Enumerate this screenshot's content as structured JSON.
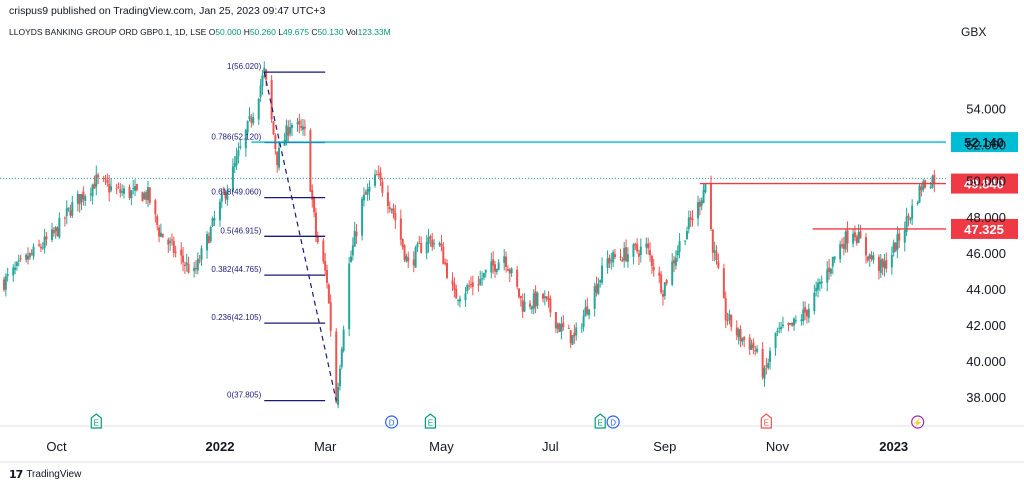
{
  "publisher": "crispus9 published on TradingView.com, Jan 25, 2023 09:47 UTC+3",
  "symbol": {
    "name": "LLOYDS BANKING GROUP ORD GBP0.1, 1D, LSE",
    "open_label": "O",
    "open": "50.000",
    "high_label": "H",
    "high": "50.260",
    "low_label": "L",
    "low": "49.675",
    "close_label": "C",
    "close": "50.130",
    "vol_label": "Vol",
    "vol": "123.33M"
  },
  "currency": "GBX",
  "footer": {
    "brand": "TradingView"
  },
  "colors": {
    "up": "#26a69a",
    "down": "#ef5350",
    "fib": "#1a1a7a",
    "resistance": "#ef3a45",
    "cyan": "#00bcd4",
    "price_dotted": "#26a69a"
  },
  "chart_data": {
    "type": "candlestick",
    "ylim": [
      36.4,
      57.8
    ],
    "y_ticks": [
      "54.000",
      "52.000",
      "50.000",
      "48.000",
      "46.000",
      "44.000",
      "42.000",
      "40.000",
      "38.000"
    ],
    "y_tick_values": [
      54,
      52,
      50,
      48,
      46,
      44,
      42,
      40,
      38
    ],
    "x_ticks": [
      "Oct",
      "2022",
      "Mar",
      "May",
      "Jul",
      "Sep",
      "Nov",
      "2023"
    ],
    "x_tick_dates": [
      "2021-10-01",
      "2022-01-03",
      "2022-03-01",
      "2022-05-03",
      "2022-07-01",
      "2022-09-01",
      "2022-11-01",
      "2023-01-03"
    ],
    "bold_x_ticks": [
      "2022",
      "2023"
    ],
    "date_range": [
      "2021-09-08",
      "2023-01-27"
    ],
    "price_path": [
      [
        "2021-09-08",
        44.4
      ],
      [
        "2021-09-20",
        45.6
      ],
      [
        "2021-10-05",
        47.0
      ],
      [
        "2021-10-15",
        48.6
      ],
      [
        "2021-10-28",
        50.0
      ],
      [
        "2021-11-08",
        49.4
      ],
      [
        "2021-11-25",
        49.2
      ],
      [
        "2021-12-01",
        47.2
      ],
      [
        "2021-12-10",
        46.0
      ],
      [
        "2021-12-20",
        44.8
      ],
      [
        "2021-12-31",
        47.8
      ],
      [
        "2022-01-10",
        50.5
      ],
      [
        "2022-01-20",
        53.5
      ],
      [
        "2022-01-27",
        56.02
      ],
      [
        "2022-02-03",
        51.2
      ],
      [
        "2022-02-10",
        53.2
      ],
      [
        "2022-02-18",
        52.6
      ],
      [
        "2022-02-24",
        47.0
      ],
      [
        "2022-03-02",
        44.5
      ],
      [
        "2022-03-07",
        37.805
      ],
      [
        "2022-03-14",
        45.3
      ],
      [
        "2022-03-21",
        48.8
      ],
      [
        "2022-03-29",
        50.2
      ],
      [
        "2022-04-06",
        48.6
      ],
      [
        "2022-04-15",
        45.3
      ],
      [
        "2022-04-25",
        46.8
      ],
      [
        "2022-05-02",
        46.4
      ],
      [
        "2022-05-10",
        43.6
      ],
      [
        "2022-05-24",
        44.5
      ],
      [
        "2022-06-06",
        45.9
      ],
      [
        "2022-06-16",
        43.1
      ],
      [
        "2022-06-27",
        43.5
      ],
      [
        "2022-07-06",
        41.9
      ],
      [
        "2022-07-14",
        41.2
      ],
      [
        "2022-07-22",
        43.3
      ],
      [
        "2022-08-01",
        45.6
      ],
      [
        "2022-08-10",
        45.9
      ],
      [
        "2022-08-22",
        46.3
      ],
      [
        "2022-08-31",
        44.0
      ],
      [
        "2022-09-09",
        46.5
      ],
      [
        "2022-09-19",
        48.6
      ],
      [
        "2022-09-23",
        49.84
      ],
      [
        "2022-09-27",
        46.4
      ],
      [
        "2022-10-04",
        42.5
      ],
      [
        "2022-10-11",
        41.4
      ],
      [
        "2022-10-19",
        40.8
      ],
      [
        "2022-10-25",
        39.2
      ],
      [
        "2022-10-31",
        41.5
      ],
      [
        "2022-11-08",
        41.8
      ],
      [
        "2022-11-17",
        42.8
      ],
      [
        "2022-11-28",
        45.0
      ],
      [
        "2022-12-05",
        46.4
      ],
      [
        "2022-12-12",
        47.325
      ],
      [
        "2022-12-19",
        46.0
      ],
      [
        "2022-12-28",
        45.1
      ],
      [
        "2023-01-05",
        46.6
      ],
      [
        "2023-01-12",
        48.2
      ],
      [
        "2023-01-18",
        49.7
      ],
      [
        "2023-01-24",
        50.13
      ]
    ],
    "fib_levels": [
      {
        "label": "1(56.020)",
        "value": 56.02
      },
      {
        "label": "0.786(52.120)",
        "value": 52.12
      },
      {
        "label": "0.618(49.060)",
        "value": 49.06
      },
      {
        "label": "0.5(46.915)",
        "value": 46.915
      },
      {
        "label": "0.382(44.765)",
        "value": 44.765
      },
      {
        "label": "0.236(42.105)",
        "value": 42.105
      },
      {
        "label": "0(37.805)",
        "value": 37.805
      }
    ],
    "fib_range": [
      "2022-01-27",
      "2022-03-07",
      "2022-03-01"
    ],
    "lines": [
      {
        "name": "resistance-52",
        "value": 52.14,
        "from": "2022-01-20",
        "color": "#00bcd4",
        "label": "52.140"
      },
      {
        "name": "resistance-49",
        "value": 49.84,
        "from": "2022-09-20",
        "color": "#ef3a45",
        "label": "49.840"
      },
      {
        "name": "resistance-47",
        "value": 47.325,
        "from": "2022-11-20",
        "color": "#ef3a45",
        "label": "47.325"
      }
    ],
    "current_price": 50.13,
    "events": [
      {
        "date": "2021-10-28",
        "glyph": "E",
        "color": "#089981"
      },
      {
        "date": "2022-04-06",
        "glyph": "D",
        "color": "#2962ff"
      },
      {
        "date": "2022-04-27",
        "glyph": "E",
        "color": "#089981"
      },
      {
        "date": "2022-07-28",
        "glyph": "E",
        "color": "#089981"
      },
      {
        "date": "2022-08-04",
        "glyph": "D",
        "color": "#2962ff"
      },
      {
        "date": "2022-10-26",
        "glyph": "E",
        "color": "#ef5350"
      },
      {
        "date": "2023-01-16",
        "glyph": "⚡",
        "color": "#9c27b0"
      }
    ]
  }
}
